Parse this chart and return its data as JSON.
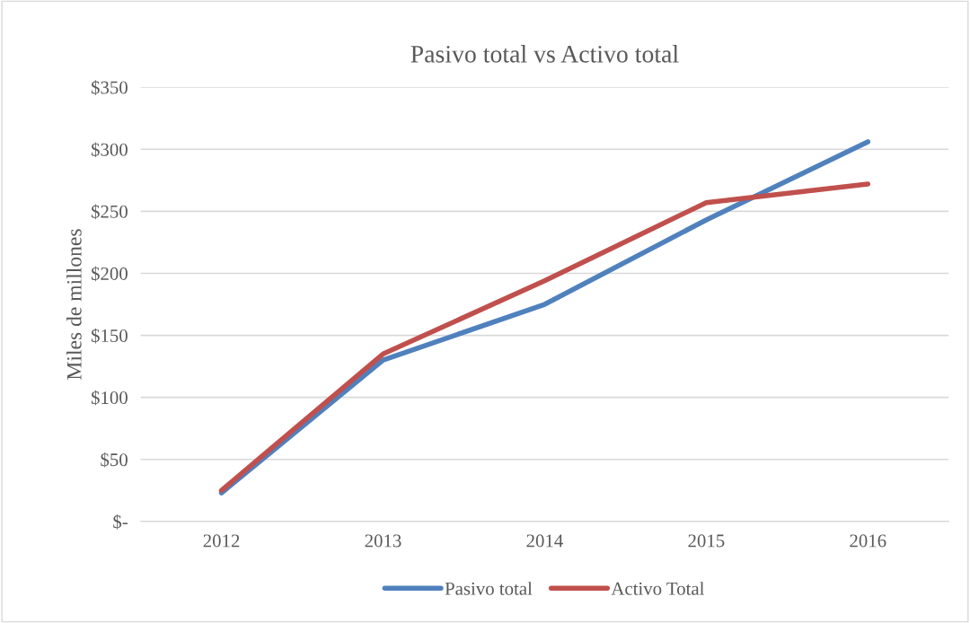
{
  "chart_data": {
    "type": "line",
    "title": "Pasivo total vs Activo total",
    "ylabel": "Miles de millones",
    "categories": [
      "2012",
      "2013",
      "2014",
      "2015",
      "2016"
    ],
    "series": [
      {
        "name": "Pasivo total",
        "color": "#4f81bd",
        "values": [
          23,
          130,
          175,
          243,
          306
        ]
      },
      {
        "name": "Activo Total",
        "color": "#c0504d",
        "values": [
          25,
          135,
          194,
          257,
          272
        ]
      }
    ],
    "ylim": [
      0,
      350
    ],
    "yticks": [
      {
        "value": 0,
        "label": "$-"
      },
      {
        "value": 50,
        "label": "$50"
      },
      {
        "value": 100,
        "label": "$100"
      },
      {
        "value": 150,
        "label": "$150"
      },
      {
        "value": 200,
        "label": "$200"
      },
      {
        "value": 250,
        "label": "$250"
      },
      {
        "value": 300,
        "label": "$300"
      },
      {
        "value": 350,
        "label": "$350"
      }
    ],
    "grid": "y",
    "legend": "bottom",
    "marker": "none",
    "line_style": "solid"
  }
}
